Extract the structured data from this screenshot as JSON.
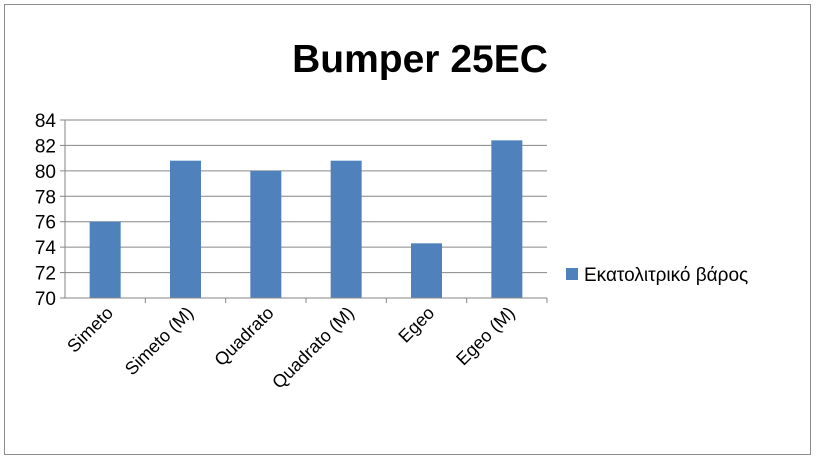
{
  "chart_data": {
    "type": "bar",
    "title": "Bumper 25EC",
    "categories": [
      "Simeto",
      "Simeto (M)",
      "Quadrato",
      "Quadrato (M)",
      "Egeo",
      "Egeo (M)"
    ],
    "series": [
      {
        "name": "Εκατολιτρικό βάρος",
        "values": [
          76.0,
          80.8,
          80.0,
          80.8,
          74.3,
          82.4
        ],
        "color": "#4f81bd"
      }
    ],
    "ylim": [
      70,
      84
    ],
    "yticks": [
      70,
      72,
      74,
      76,
      78,
      80,
      82,
      84
    ],
    "grid": true,
    "legend_position": "right",
    "xlabel": "",
    "ylabel": ""
  }
}
